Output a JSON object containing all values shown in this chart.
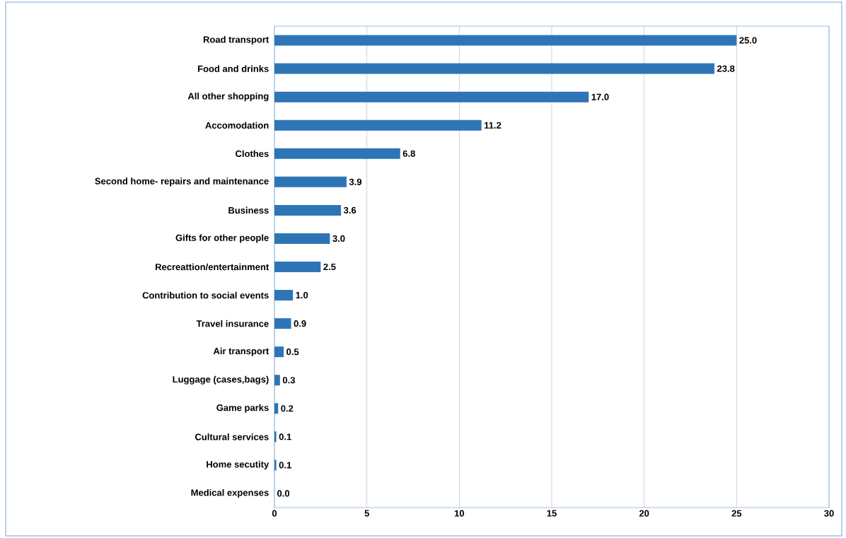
{
  "chart_data": {
    "type": "bar",
    "orientation": "horizontal",
    "categories": [
      "Road transport",
      "Food and drinks",
      "All other shopping",
      "Accomodation",
      "Clothes",
      "Second home- repairs and maintenance",
      "Business",
      "Gifts for other people",
      "Recreattion/entertainment",
      "Contribution to social events",
      "Travel insurance",
      "Air transport",
      "Luggage (cases,bags)",
      "Game parks",
      "Cultural services",
      "Home secutity",
      "Medical expenses"
    ],
    "values": [
      25.0,
      23.8,
      17.0,
      11.2,
      6.8,
      3.9,
      3.6,
      3.0,
      2.5,
      1.0,
      0.9,
      0.5,
      0.3,
      0.2,
      0.1,
      0.1,
      0.0
    ],
    "color": "#2e75b6",
    "xlim": [
      0,
      30
    ],
    "xticks": [
      0,
      5,
      10,
      15,
      20,
      25,
      30
    ],
    "value_labels": [
      "25.0",
      "23.8",
      "17.0",
      "11.2",
      "6.8",
      "3.9",
      "3.6",
      "3.0",
      "2.5",
      "1.0",
      "0.9",
      "0.5",
      "0.3",
      "0.2",
      "0.1",
      "0.1",
      "0.0"
    ],
    "grid": "x"
  }
}
